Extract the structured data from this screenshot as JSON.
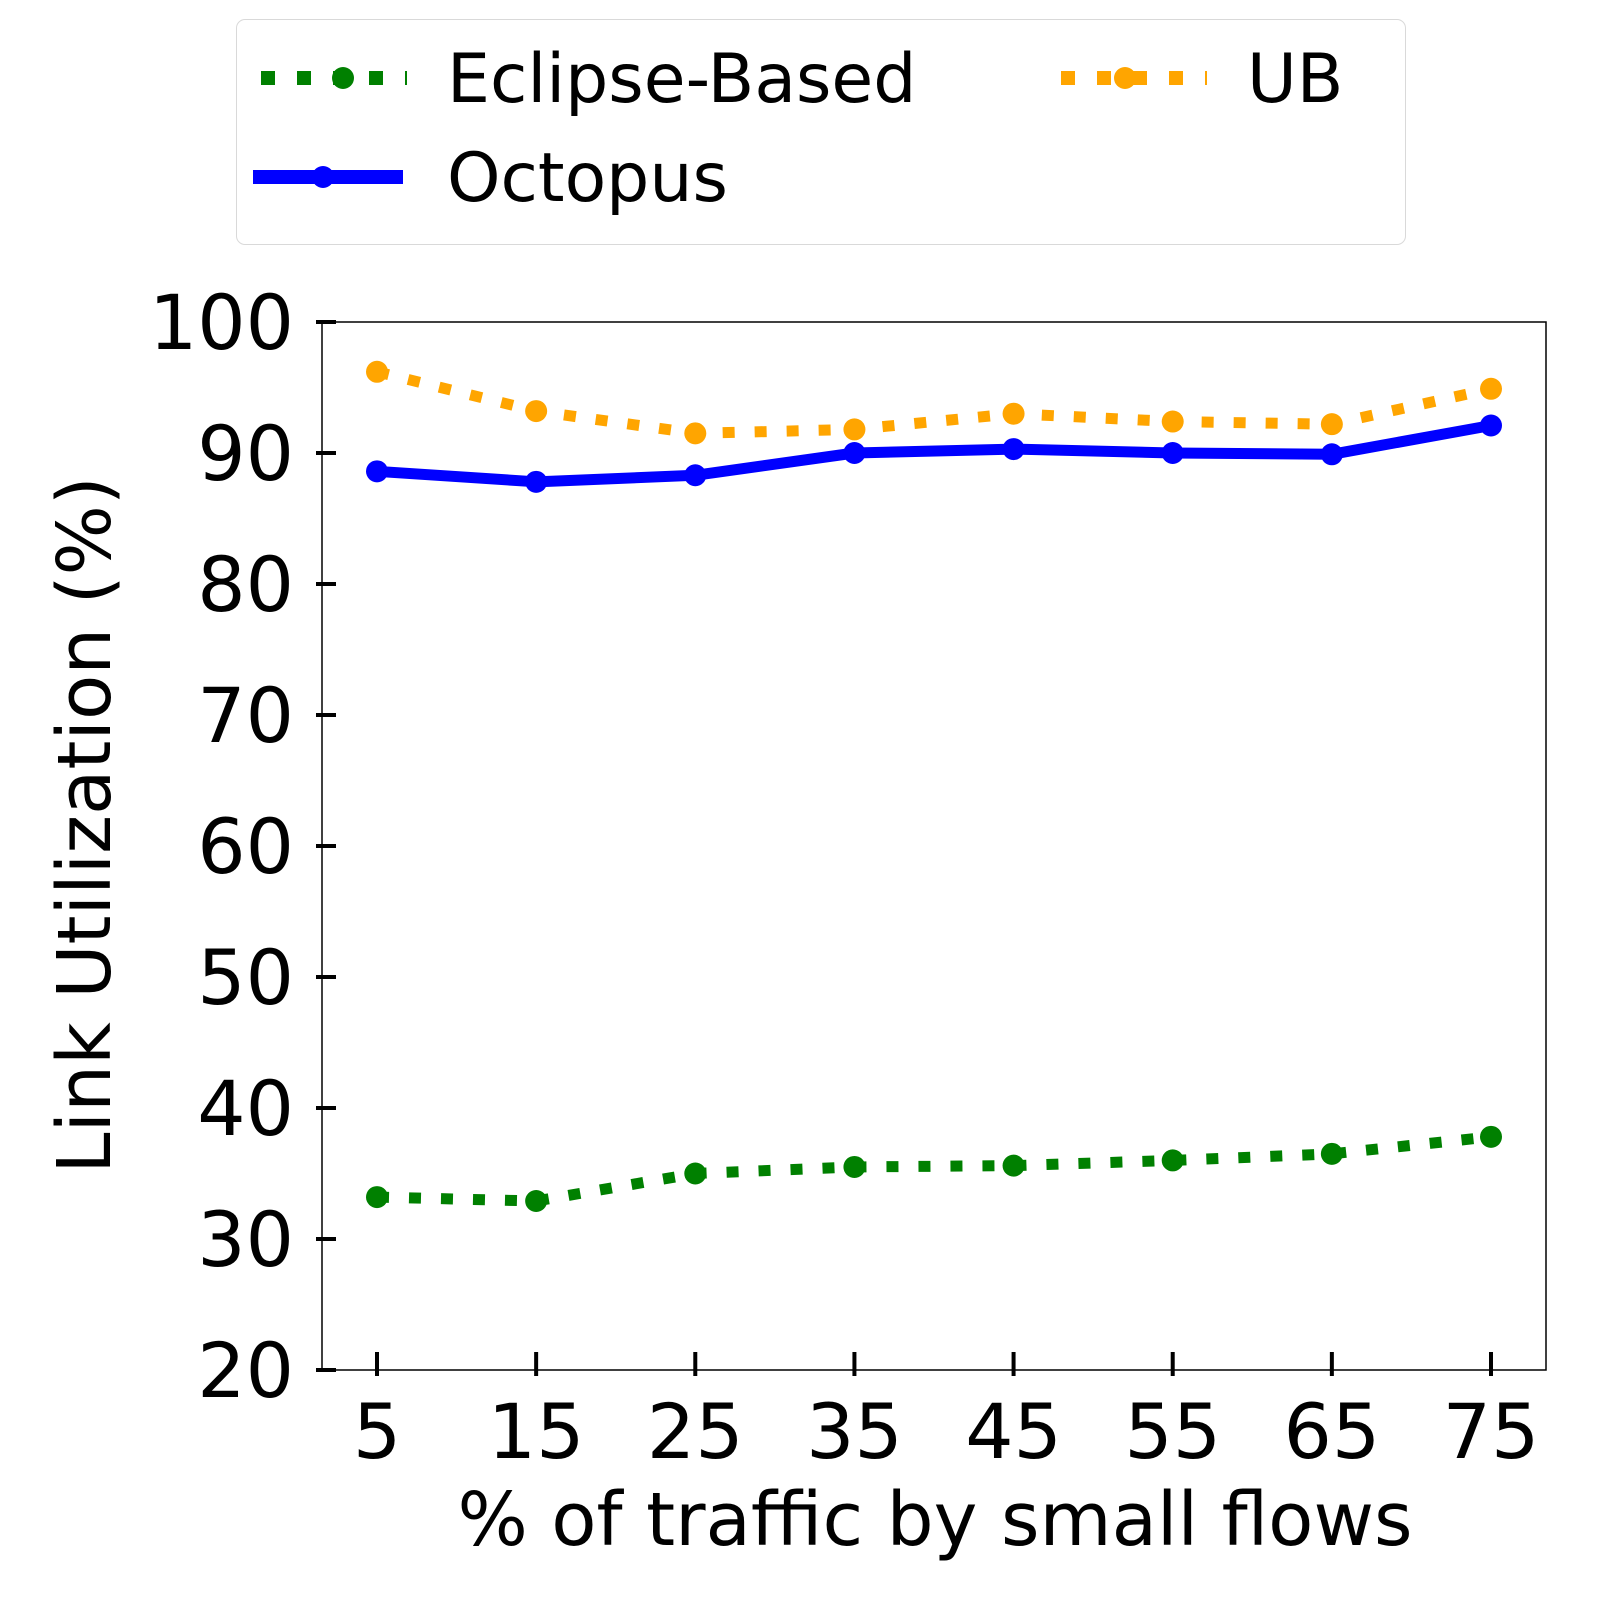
{
  "chart_data": {
    "type": "line",
    "xlabel": "% of traffic by small flows",
    "ylabel": "Link Utilization (%)",
    "x": [
      5,
      15,
      25,
      35,
      45,
      55,
      65,
      75
    ],
    "xticks": [
      "5",
      "15",
      "25",
      "35",
      "45",
      "55",
      "65",
      "75"
    ],
    "yticks": [
      "20",
      "30",
      "40",
      "50",
      "60",
      "70",
      "80",
      "90",
      "100"
    ],
    "ylim": [
      20,
      100
    ],
    "grid": false,
    "legend_placement": "top, outside plot",
    "series": [
      {
        "name": "Eclipse-Based",
        "style": "dotted",
        "color": "#008000",
        "values": [
          33.2,
          32.9,
          35.0,
          35.5,
          35.6,
          36.0,
          36.5,
          37.8
        ]
      },
      {
        "name": "UB",
        "style": "dotted",
        "color": "#ffa500",
        "values": [
          96.2,
          93.2,
          91.5,
          91.8,
          93.0,
          92.4,
          92.2,
          94.9
        ]
      },
      {
        "name": "Octopus",
        "style": "solid",
        "color": "#0000ff",
        "values": [
          88.6,
          87.8,
          88.3,
          90.0,
          90.3,
          90.0,
          89.9,
          92.1
        ]
      }
    ]
  }
}
